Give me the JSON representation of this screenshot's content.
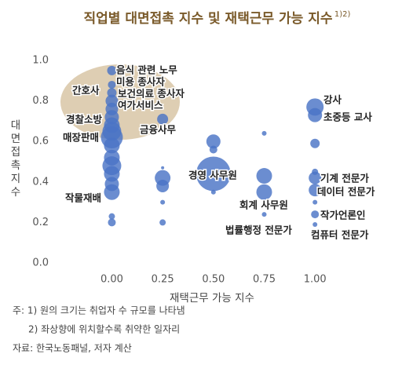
{
  "chart_data": {
    "type": "scatter",
    "title": "직업별 대면접촉 지수 및 재택근무 가능 지수",
    "title_note": "1)2)",
    "x_label": "재택근무 가능 지수",
    "y_label": "대면접촉 지수",
    "xlim": [
      -0.28,
      1.15
    ],
    "ylim": [
      0,
      1.0
    ],
    "xticks": [
      {
        "value": 0,
        "label": "0.00"
      },
      {
        "value": 0.25,
        "label": "0.25"
      },
      {
        "value": 0.5,
        "label": "0.50"
      },
      {
        "value": 0.75,
        "label": "0.75"
      },
      {
        "value": 1,
        "label": "1.00"
      }
    ],
    "yticks": [
      {
        "value": 0,
        "label": "0.0"
      },
      0.2,
      0.4,
      0.6,
      0.8,
      {
        "value": 1,
        "label": "1.0"
      }
    ],
    "series": [
      {
        "color": "#4a74c6",
        "x": [
          0,
          0,
          0,
          0,
          0,
          0,
          0,
          0,
          0,
          0,
          0,
          0,
          0,
          0,
          0,
          0,
          0,
          0.25,
          0.25,
          0.25,
          0.25,
          0.25,
          0.25,
          0.5,
          0.5,
          0.5,
          0.5,
          0.75,
          0.75,
          0.75,
          0.75,
          1,
          1,
          1,
          1,
          1,
          1,
          1,
          1,
          1
        ],
        "values": [
          0.95,
          0.88,
          0.84,
          0.8,
          0.76,
          0.72,
          0.68,
          0.65,
          0.62,
          0.58,
          0.52,
          0.48,
          0.44,
          0.39,
          0.35,
          0.23,
          0.2,
          0.71,
          0.42,
          0.38,
          0.47,
          0.3,
          0.2,
          0.6,
          0.56,
          0.44,
          0.35,
          0.64,
          0.43,
          0.35,
          0.24,
          0.77,
          0.73,
          0.59,
          0.45,
          0.42,
          0.36,
          0.3,
          0.24,
          0.19
        ],
        "sizes": [
          36,
          25,
          36,
          64,
          64,
          81,
          100,
          144,
          196,
          100,
          100,
          144,
          100,
          81,
          100,
          16,
          25,
          49,
          100,
          64,
          4,
          9,
          16,
          81,
          25,
          484,
          9,
          9,
          100,
          100,
          9,
          121,
          81,
          36,
          16,
          64,
          64,
          9,
          25,
          9
        ]
      }
    ],
    "annotations": [
      "음식 관련 노무",
      "미용 종사자",
      "간호사",
      "보건의료 종사자",
      "여가서비스",
      "경찰소방",
      "금융사무",
      "매장판매",
      "경영 사무원",
      "작물재배",
      "회계 사무원",
      "법률행정 전문가",
      "강사",
      "초중등 교사",
      "기계 전문가",
      "데이터 전문가",
      "작가언론인",
      "컴퓨터 전문가"
    ],
    "notes": [
      "주: 1) 원의 크기는 취업자 수 규모를 나타냄",
      "2) 좌상향에 위치할수록 취약한 일자리",
      "자료: 한국노동패널, 저자 계산"
    ]
  }
}
